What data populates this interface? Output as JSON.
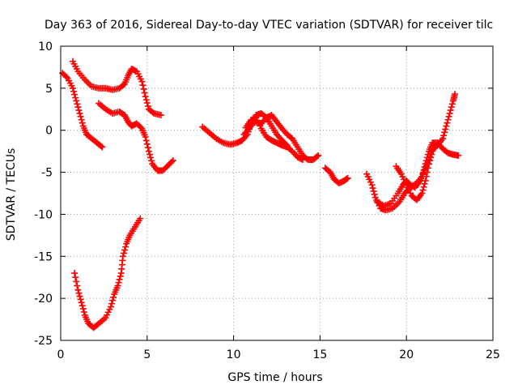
{
  "chart_data": {
    "type": "scatter",
    "title": "Day 363 of 2016, Sidereal Day-to-day VTEC variation (SDTVAR) for receiver tilc",
    "xlabel": "GPS time / hours",
    "ylabel": "SDTVAR / TECUs",
    "xlim": [
      0,
      25
    ],
    "ylim": [
      -25,
      10
    ],
    "xticks": [
      "0",
      "5",
      "10",
      "15",
      "20",
      "25"
    ],
    "yticks": [
      "-25",
      "-20",
      "-15",
      "-10",
      "-5",
      "0",
      "5",
      "10"
    ],
    "grid": true,
    "marker": "+",
    "color": "#ff0000",
    "series": [
      {
        "points": [
          [
            0.1,
            6.8
          ],
          [
            0.4,
            6.2
          ],
          [
            0.7,
            5.0
          ],
          [
            0.9,
            3.5
          ],
          [
            1.1,
            2.0
          ],
          [
            1.3,
            0.5
          ],
          [
            1.5,
            -0.5
          ],
          [
            1.8,
            -1.0
          ],
          [
            2.1,
            -1.5
          ],
          [
            2.4,
            -2.0
          ]
        ]
      },
      {
        "points": [
          [
            0.7,
            8.2
          ],
          [
            1.0,
            7.0
          ],
          [
            1.4,
            6.0
          ],
          [
            1.8,
            5.2
          ],
          [
            2.2,
            5.0
          ],
          [
            2.6,
            5.0
          ],
          [
            3.0,
            4.8
          ],
          [
            3.4,
            5.0
          ],
          [
            3.7,
            5.5
          ],
          [
            3.9,
            6.5
          ],
          [
            4.1,
            7.3
          ],
          [
            4.4,
            7.0
          ],
          [
            4.7,
            5.8
          ],
          [
            4.9,
            4.0
          ],
          [
            5.1,
            2.5
          ],
          [
            5.4,
            2.0
          ],
          [
            5.8,
            1.8
          ]
        ]
      },
      {
        "points": [
          [
            2.2,
            3.2
          ],
          [
            2.6,
            2.5
          ],
          [
            3.0,
            2.0
          ],
          [
            3.4,
            2.2
          ],
          [
            3.7,
            1.8
          ],
          [
            3.9,
            1.0
          ],
          [
            4.1,
            0.5
          ],
          [
            4.4,
            0.8
          ],
          [
            4.7,
            0.2
          ],
          [
            4.9,
            -0.8
          ],
          [
            5.1,
            -2.5
          ],
          [
            5.3,
            -4.0
          ],
          [
            5.6,
            -4.8
          ],
          [
            5.9,
            -4.8
          ],
          [
            6.2,
            -4.2
          ],
          [
            6.5,
            -3.6
          ]
        ]
      },
      {
        "points": [
          [
            0.8,
            -17.0
          ],
          [
            1.0,
            -19.0
          ],
          [
            1.2,
            -20.5
          ],
          [
            1.4,
            -22.0
          ],
          [
            1.6,
            -23.0
          ],
          [
            1.9,
            -23.5
          ],
          [
            2.2,
            -23.0
          ],
          [
            2.6,
            -22.3
          ],
          [
            2.9,
            -21.0
          ],
          [
            3.1,
            -19.5
          ],
          [
            3.3,
            -18.5
          ],
          [
            3.5,
            -17.0
          ],
          [
            3.6,
            -15.0
          ],
          [
            3.8,
            -13.5
          ],
          [
            4.0,
            -12.5
          ],
          [
            4.3,
            -11.5
          ],
          [
            4.6,
            -10.5
          ]
        ]
      },
      {
        "points": [
          [
            8.2,
            0.4
          ],
          [
            8.6,
            -0.3
          ],
          [
            9.0,
            -1.0
          ],
          [
            9.4,
            -1.5
          ],
          [
            9.8,
            -1.7
          ],
          [
            10.2,
            -1.5
          ],
          [
            10.5,
            -1.2
          ],
          [
            10.8,
            -0.5
          ],
          [
            11.0,
            0.8
          ],
          [
            11.3,
            1.8
          ],
          [
            11.6,
            2.0
          ],
          [
            11.9,
            1.5
          ],
          [
            12.2,
            0.5
          ],
          [
            12.5,
            -0.5
          ],
          [
            12.8,
            -1.2
          ],
          [
            13.1,
            -1.8
          ]
        ]
      },
      {
        "points": [
          [
            10.6,
            -0.5
          ],
          [
            10.9,
            0.2
          ],
          [
            11.2,
            1.0
          ],
          [
            11.6,
            0.8
          ],
          [
            11.9,
            1.5
          ],
          [
            12.2,
            1.8
          ],
          [
            12.5,
            1.0
          ],
          [
            12.8,
            0.2
          ],
          [
            13.1,
            -0.5
          ],
          [
            13.4,
            -1.0
          ],
          [
            13.7,
            -2.0
          ],
          [
            14.0,
            -3.0
          ],
          [
            14.3,
            -3.5
          ],
          [
            14.6,
            -3.5
          ],
          [
            14.9,
            -3.0
          ]
        ]
      },
      {
        "points": [
          [
            10.7,
            0.3
          ],
          [
            11.0,
            1.2
          ],
          [
            11.3,
            1.5
          ],
          [
            11.6,
            0.2
          ],
          [
            11.9,
            -0.8
          ],
          [
            12.2,
            -1.2
          ],
          [
            12.5,
            -1.5
          ],
          [
            12.8,
            -1.8
          ],
          [
            13.1,
            -2.0
          ],
          [
            13.4,
            -2.5
          ],
          [
            13.7,
            -3.2
          ],
          [
            14.0,
            -3.5
          ]
        ]
      },
      {
        "points": [
          [
            15.3,
            -4.5
          ],
          [
            15.6,
            -5.0
          ],
          [
            15.8,
            -5.8
          ],
          [
            16.1,
            -6.3
          ],
          [
            16.4,
            -6.0
          ],
          [
            16.6,
            -5.7
          ]
        ]
      },
      {
        "points": [
          [
            17.7,
            -5.2
          ],
          [
            18.0,
            -6.5
          ],
          [
            18.2,
            -8.0
          ],
          [
            18.5,
            -9.3
          ],
          [
            18.8,
            -9.5
          ],
          [
            19.2,
            -9.3
          ],
          [
            19.6,
            -8.5
          ],
          [
            19.9,
            -7.5
          ],
          [
            20.2,
            -6.8
          ],
          [
            20.6,
            -6.3
          ],
          [
            20.9,
            -5.5
          ],
          [
            21.1,
            -4.0
          ],
          [
            21.3,
            -2.5
          ],
          [
            21.5,
            -1.5
          ],
          [
            21.8,
            -1.5
          ],
          [
            22.1,
            -2.2
          ],
          [
            22.4,
            -2.7
          ],
          [
            22.7,
            -2.9
          ],
          [
            23.0,
            -3.0
          ]
        ]
      },
      {
        "points": [
          [
            18.3,
            -8.5
          ],
          [
            18.7,
            -9.0
          ],
          [
            19.1,
            -8.7
          ],
          [
            19.5,
            -7.5
          ],
          [
            19.8,
            -6.5
          ],
          [
            20.0,
            -6.0
          ],
          [
            20.2,
            -6.5
          ],
          [
            20.5,
            -6.8
          ],
          [
            20.8,
            -6.0
          ],
          [
            21.0,
            -5.0
          ],
          [
            21.3,
            -3.5
          ],
          [
            21.5,
            -2.0
          ],
          [
            21.8,
            -1.8
          ],
          [
            22.1,
            -1.0
          ],
          [
            22.3,
            0.5
          ],
          [
            22.5,
            2.0
          ],
          [
            22.7,
            3.5
          ],
          [
            22.8,
            4.3
          ]
        ]
      },
      {
        "points": [
          [
            19.4,
            -4.3
          ],
          [
            19.7,
            -5.2
          ],
          [
            20.0,
            -6.5
          ],
          [
            20.3,
            -7.8
          ],
          [
            20.6,
            -8.3
          ],
          [
            20.9,
            -7.5
          ],
          [
            21.1,
            -6.0
          ],
          [
            21.3,
            -4.0
          ],
          [
            21.5,
            -2.5
          ],
          [
            21.7,
            -1.8
          ]
        ]
      }
    ]
  }
}
